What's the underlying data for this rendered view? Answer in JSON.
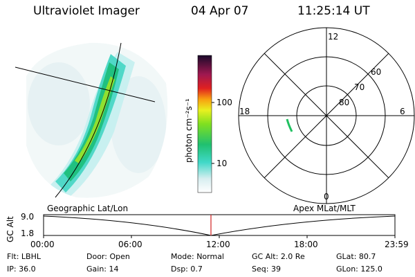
{
  "header": {
    "title": "Ultraviolet Imager",
    "date": "04 Apr 07",
    "time": "11:25:14 UT"
  },
  "colorbar": {
    "label": "photon cm⁻²s⁻¹",
    "ticks": [
      "100",
      "10"
    ]
  },
  "polar_plot": {
    "mlt_labels": {
      "top": "12",
      "left": "18",
      "right": "6",
      "bottom": "0"
    },
    "lat_labels": [
      "60",
      "70",
      "80"
    ]
  },
  "projection_labels": {
    "left": "Geographic Lat/Lon",
    "right": "Apex MLat/MLT"
  },
  "altitude_chart": {
    "ylabel": "GC Alt",
    "yticks": [
      "9.0",
      "1.8"
    ],
    "xticks": [
      "00:00",
      "06:00",
      "12:00",
      "18:00",
      "23:59"
    ],
    "current_time": "11:25"
  },
  "footer": {
    "row1": [
      {
        "label": "Flt:",
        "value": "LBHL"
      },
      {
        "label": "Door:",
        "value": "Open"
      },
      {
        "label": "Mode:",
        "value": "Normal"
      },
      {
        "label": "GC Alt:",
        "value": "2.0 Re"
      },
      {
        "label": "GLat:",
        "value": "80.7"
      }
    ],
    "row2": [
      {
        "label": "IP:",
        "value": "36.0"
      },
      {
        "label": "Gain:",
        "value": "14"
      },
      {
        "label": "Dsp:",
        "value": "0.7"
      },
      {
        "label": "Seq:",
        "value": "39"
      },
      {
        "label": "GLon:",
        "value": "125.0"
      }
    ]
  },
  "colors": {
    "accent_line": "#d02020",
    "scale_low": "#d8eef0",
    "scale_mid": "#20c0a0",
    "scale_high": "#1a0a2a"
  }
}
